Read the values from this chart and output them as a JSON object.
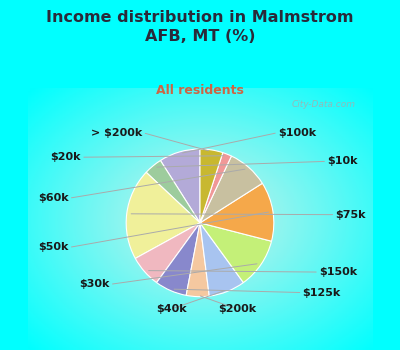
{
  "title": "Income distribution in Malmstrom\nAFB, MT (%)",
  "subtitle": "All residents",
  "outer_bg": "#00FFFF",
  "title_color": "#2a2a3a",
  "subtitle_color": "#cc6644",
  "labels": [
    "$100k",
    "$10k",
    "$75k",
    "$150k",
    "$125k",
    "$200k",
    "$40k",
    "$30k",
    "$50k",
    "$60k",
    "$20k",
    "> $200k"
  ],
  "sizes": [
    9,
    4,
    20,
    7,
    7,
    5,
    8,
    11,
    13,
    9,
    2,
    5
  ],
  "colors": [
    "#b3aad8",
    "#9dcc9d",
    "#f0f09a",
    "#f0b8c0",
    "#8888cc",
    "#f5c8a0",
    "#a8c4f0",
    "#c4f078",
    "#f5a84a",
    "#c8c0a0",
    "#f09898",
    "#c8b830"
  ],
  "wedge_edgecolor": "white",
  "wedge_linewidth": 0.8,
  "label_fontsize": 8,
  "label_color": "#1a1a1a",
  "line_color": "#aaaaaa",
  "watermark": "City-Data.com"
}
